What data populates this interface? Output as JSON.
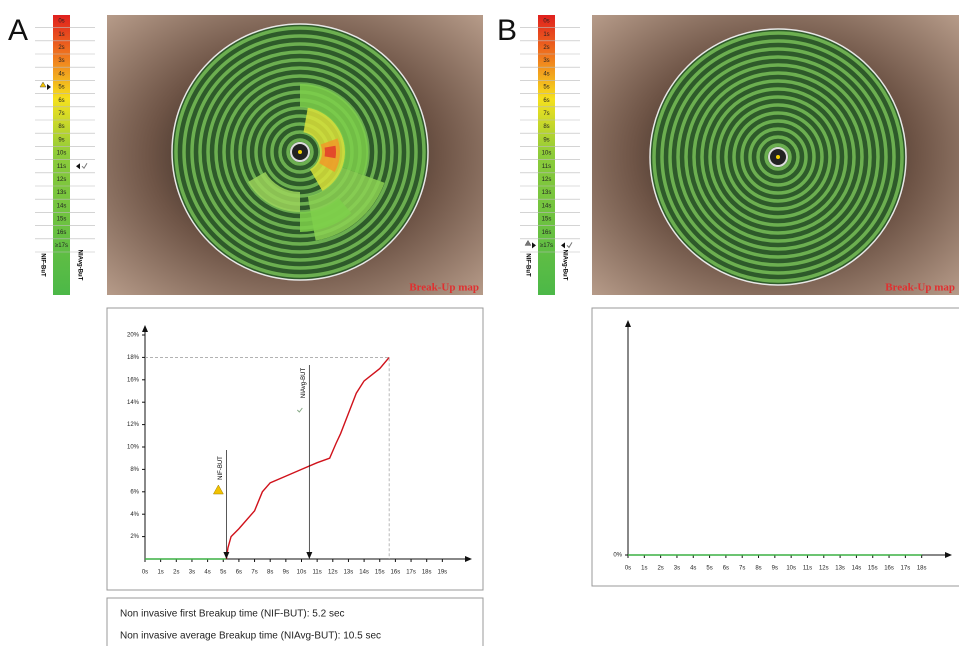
{
  "panels": [
    {
      "label": "A",
      "scale": [
        "0s",
        "1s",
        "2s",
        "3s",
        "4s",
        "5s",
        "6s",
        "7s",
        "8s",
        "9s",
        "10s",
        "11s",
        "12s",
        "13s",
        "14s",
        "15s",
        "16s",
        "≥17s"
      ],
      "scale_left": "NIF-BuT",
      "scale_right": "NIAvg-BuT",
      "map_label": "Break-Up map"
    },
    {
      "label": "B",
      "scale": [
        "0s",
        "1s",
        "2s",
        "3s",
        "4s",
        "5s",
        "6s",
        "7s",
        "8s",
        "9s",
        "10s",
        "11s",
        "12s",
        "13s",
        "14s",
        "15s",
        "16s",
        "≥17s"
      ],
      "scale_left": "NIF-BuT",
      "scale_right": "NIAvg-BuT",
      "map_label": "Break-Up map"
    }
  ],
  "chart_data": [
    {
      "type": "line",
      "xlim": [
        0,
        20
      ],
      "ylim": [
        0,
        20
      ],
      "xticks": [
        {
          "value": 0,
          "label": "0s"
        },
        {
          "value": 1,
          "label": "1s"
        },
        {
          "value": 2,
          "label": "2s"
        },
        {
          "value": 3,
          "label": "3s"
        },
        {
          "value": 4,
          "label": "4s"
        },
        {
          "value": 5,
          "label": "5s"
        },
        {
          "value": 6,
          "label": "6s"
        },
        {
          "value": 7,
          "label": "7s"
        },
        {
          "value": 8,
          "label": "8s"
        },
        {
          "value": 9,
          "label": "9s"
        },
        {
          "value": 10,
          "label": "10s"
        },
        {
          "value": 11,
          "label": "11s"
        },
        {
          "value": 12,
          "label": "12s"
        },
        {
          "value": 13,
          "label": "13s"
        },
        {
          "value": 14,
          "label": "14s"
        },
        {
          "value": 15,
          "label": "15s"
        },
        {
          "value": 16,
          "label": "16s"
        },
        {
          "value": 17,
          "label": "17s"
        },
        {
          "value": 18,
          "label": "18s"
        },
        {
          "value": 19,
          "label": "19s"
        }
      ],
      "yticks": [
        {
          "value": 2,
          "label": "2%"
        },
        {
          "value": 4,
          "label": "4%"
        },
        {
          "value": 6,
          "label": "6%"
        },
        {
          "value": 8,
          "label": "8%"
        },
        {
          "value": 10,
          "label": "10%"
        },
        {
          "value": 12,
          "label": "12%"
        },
        {
          "value": 14,
          "label": "14%"
        },
        {
          "value": 16,
          "label": "16%"
        },
        {
          "value": 18,
          "label": "18%"
        },
        {
          "value": 20,
          "label": "20%"
        }
      ],
      "series": [
        {
          "color": "#3cb043",
          "x": [
            0,
            5.2
          ],
          "values": [
            0,
            0
          ]
        },
        {
          "color": "#d0121b",
          "x": [
            5.2,
            5.3,
            5.5,
            6,
            7,
            7.5,
            8,
            9,
            10,
            11,
            11.8,
            12.2,
            12.5,
            13,
            13.5,
            14,
            15,
            15.6
          ],
          "values": [
            0,
            1,
            2,
            2.7,
            4.3,
            6,
            6.8,
            7.4,
            8,
            8.6,
            9,
            10.3,
            11.2,
            13,
            14.8,
            15.9,
            17,
            18
          ]
        }
      ],
      "annotations": [
        {
          "text": "NIF-BUT",
          "x": 5.2
        },
        {
          "text": "NIAvg-BUT",
          "x": 10.5
        }
      ]
    },
    {
      "type": "line",
      "xlim": [
        0,
        19
      ],
      "ylim": [
        0,
        20
      ],
      "xticks": [
        {
          "value": 0,
          "label": "0s"
        },
        {
          "value": 1,
          "label": "1s"
        },
        {
          "value": 2,
          "label": "2s"
        },
        {
          "value": 3,
          "label": "3s"
        },
        {
          "value": 4,
          "label": "4s"
        },
        {
          "value": 5,
          "label": "5s"
        },
        {
          "value": 6,
          "label": "6s"
        },
        {
          "value": 7,
          "label": "7s"
        },
        {
          "value": 8,
          "label": "8s"
        },
        {
          "value": 9,
          "label": "9s"
        },
        {
          "value": 10,
          "label": "10s"
        },
        {
          "value": 11,
          "label": "11s"
        },
        {
          "value": 12,
          "label": "12s"
        },
        {
          "value": 13,
          "label": "13s"
        },
        {
          "value": 14,
          "label": "14s"
        },
        {
          "value": 15,
          "label": "15s"
        },
        {
          "value": 16,
          "label": "16s"
        },
        {
          "value": 17,
          "label": "17s"
        },
        {
          "value": 18,
          "label": "18s"
        }
      ],
      "yticks": [
        {
          "value": 0,
          "label": "0%"
        }
      ],
      "series": [
        {
          "color": "#3cb043",
          "x": [
            0,
            18
          ],
          "values": [
            0,
            0
          ]
        }
      ],
      "annotations": []
    }
  ],
  "summary": [
    "Non invasive first Breakup time (NIF-BUT): 5.2 sec",
    "Non invasive average Breakup time (NIAvg-BUT): 10.5 sec"
  ]
}
